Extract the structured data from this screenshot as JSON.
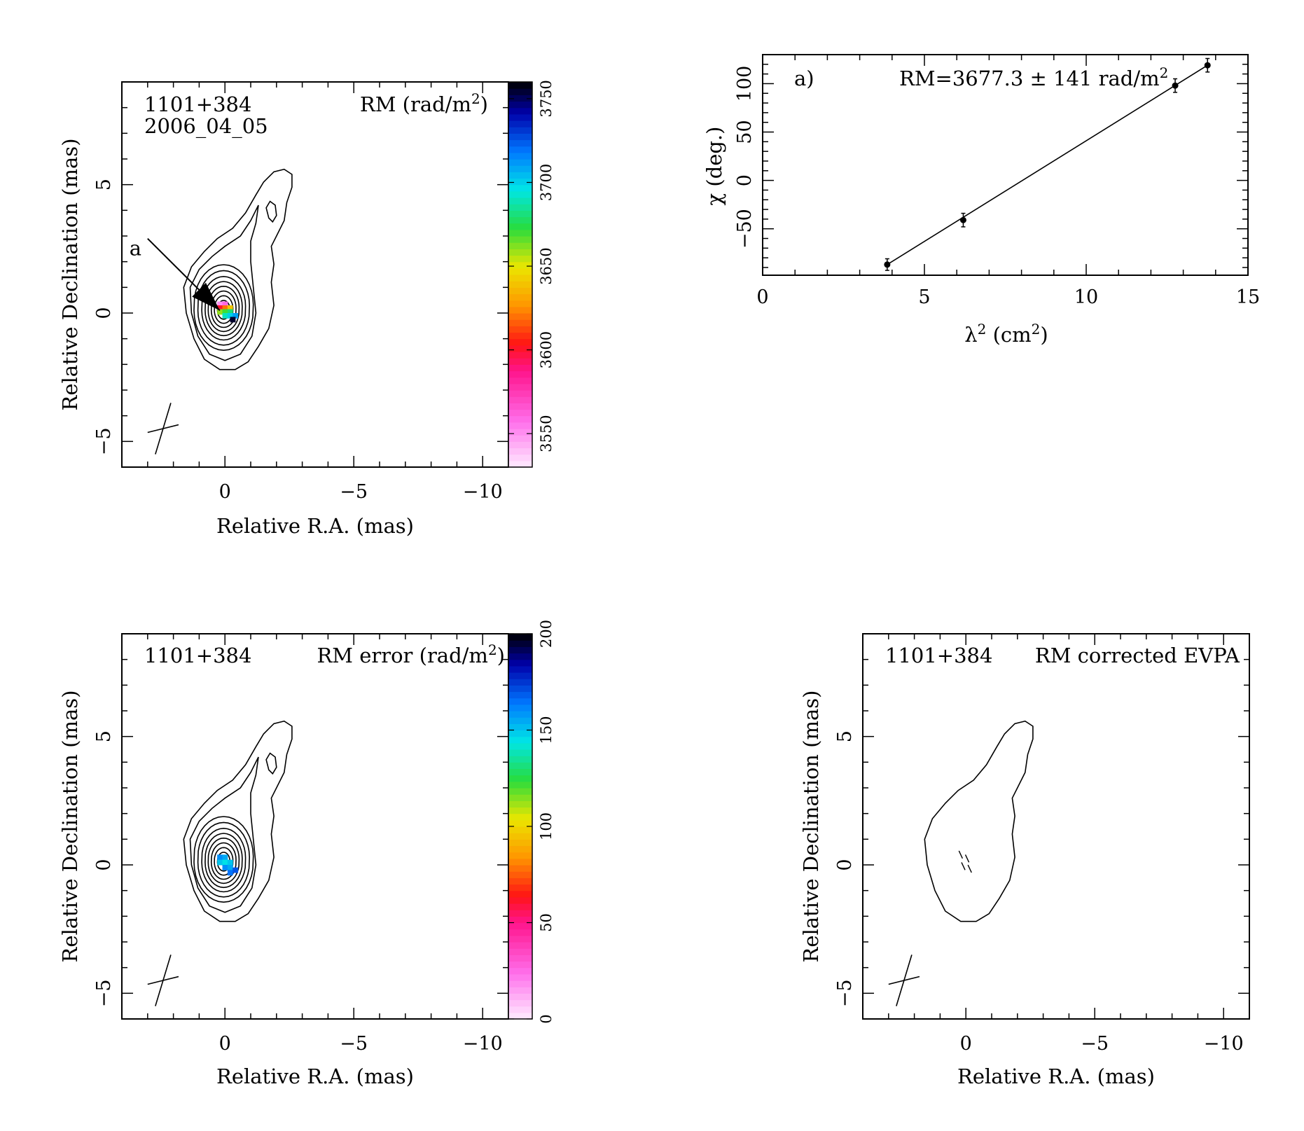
{
  "chart_data": [
    {
      "type": "heatmap",
      "id": "rm_map",
      "source": "1101+384",
      "epoch": "2006_04_05",
      "title": "RM (rad/m",
      "title_sup": "2",
      "title_end": ")",
      "xlabel": "Relative R.A. (mas)",
      "ylabel": "Relative Declination (mas)",
      "xlim": [
        4,
        -11
      ],
      "ylim": [
        -6,
        9
      ],
      "xticks": [
        {
          "v": 0,
          "label": "0"
        },
        {
          "v": -5,
          "label": "−5"
        },
        {
          "v": -10,
          "label": "−10"
        }
      ],
      "yticks": [
        {
          "v": -5,
          "label": "−5"
        },
        {
          "v": 0,
          "label": "0"
        },
        {
          "v": 5,
          "label": "5"
        }
      ],
      "colorbar": {
        "range": [
          3530,
          3760
        ],
        "ticks": [
          {
            "v": 3550,
            "label": "3550"
          },
          {
            "v": 3600,
            "label": "3600"
          },
          {
            "v": 3650,
            "label": "3650"
          },
          {
            "v": 3700,
            "label": "3700"
          },
          {
            "v": 3750,
            "label": "3750"
          }
        ]
      },
      "annotation": {
        "label": "a",
        "from": [
          3.0,
          2.9
        ],
        "to": [
          0.2,
          0.1
        ]
      },
      "rm_pixels": [
        {
          "x": 0.2,
          "y": 0.35,
          "v": 3550
        },
        {
          "x": 0.0,
          "y": 0.35,
          "v": 3560
        },
        {
          "x": 0.2,
          "y": 0.2,
          "v": 3600
        },
        {
          "x": 0.0,
          "y": 0.2,
          "v": 3620
        },
        {
          "x": -0.2,
          "y": 0.2,
          "v": 3640
        },
        {
          "x": 0.2,
          "y": 0.05,
          "v": 3660
        },
        {
          "x": 0.0,
          "y": 0.05,
          "v": 3670
        },
        {
          "x": -0.2,
          "y": 0.05,
          "v": 3680
        },
        {
          "x": 0.0,
          "y": -0.1,
          "v": 3690
        },
        {
          "x": -0.2,
          "y": -0.1,
          "v": 3700
        },
        {
          "x": -0.4,
          "y": -0.1,
          "v": 3710
        },
        {
          "x": -0.3,
          "y": -0.25,
          "v": 3755
        }
      ]
    },
    {
      "type": "scatter",
      "id": "rm_fit",
      "label": "a)",
      "fit_text": "RM=3677.3 ± 141 rad/m",
      "fit_text_sup": "2",
      "xlabel_main": "λ",
      "xlabel_sup": "2",
      "xlabel_unit": " (cm",
      "xlabel_unit_sup": "2",
      "xlabel_end": ")",
      "ylabel": "χ (deg.)",
      "xlim": [
        0,
        15
      ],
      "ylim": [
        -98,
        130
      ],
      "xticks": [
        {
          "v": 0,
          "label": "0"
        },
        {
          "v": 5,
          "label": "5"
        },
        {
          "v": 10,
          "label": "10"
        },
        {
          "v": 15,
          "label": "15"
        }
      ],
      "yticks": [
        {
          "v": -50,
          "label": "−50"
        },
        {
          "v": 0,
          "label": "0"
        },
        {
          "v": 50,
          "label": "50"
        },
        {
          "v": 100,
          "label": "100"
        }
      ],
      "points": [
        {
          "x": 3.85,
          "y": -87,
          "err": 6
        },
        {
          "x": 6.2,
          "y": -41,
          "err": 7
        },
        {
          "x": 12.75,
          "y": 98,
          "err": 7
        },
        {
          "x": 13.75,
          "y": 119,
          "err": 7
        }
      ],
      "fit_line": {
        "x": [
          3.85,
          13.75
        ],
        "y": [
          -87,
          119
        ]
      }
    },
    {
      "type": "heatmap",
      "id": "rm_error_map",
      "source": "1101+384",
      "title": "RM error (rad/m",
      "title_sup": "2",
      "title_end": ")",
      "xlabel": "Relative R.A. (mas)",
      "ylabel": "Relative Declination (mas)",
      "xlim": [
        4,
        -11
      ],
      "ylim": [
        -6,
        9
      ],
      "xticks": [
        {
          "v": 0,
          "label": "0"
        },
        {
          "v": -5,
          "label": "−5"
        },
        {
          "v": -10,
          "label": "−10"
        }
      ],
      "yticks": [
        {
          "v": -5,
          "label": "−5"
        },
        {
          "v": 0,
          "label": "0"
        },
        {
          "v": 5,
          "label": "5"
        }
      ],
      "colorbar": {
        "range": [
          0,
          200
        ],
        "ticks": [
          {
            "v": 0,
            "label": "0"
          },
          {
            "v": 50,
            "label": "50"
          },
          {
            "v": 100,
            "label": "100"
          },
          {
            "v": 150,
            "label": "150"
          },
          {
            "v": 200,
            "label": "200"
          }
        ]
      },
      "err_pixels": [
        {
          "x": 0.2,
          "y": 0.3,
          "v": 160
        },
        {
          "x": 0.0,
          "y": 0.3,
          "v": 155
        },
        {
          "x": 0.2,
          "y": 0.1,
          "v": 150
        },
        {
          "x": 0.0,
          "y": 0.1,
          "v": 145
        },
        {
          "x": -0.2,
          "y": 0.1,
          "v": 150
        },
        {
          "x": 0.0,
          "y": -0.1,
          "v": 160
        },
        {
          "x": -0.2,
          "y": -0.1,
          "v": 155
        },
        {
          "x": -0.2,
          "y": -0.3,
          "v": 165
        },
        {
          "x": -0.4,
          "y": -0.2,
          "v": 170
        }
      ]
    },
    {
      "type": "heatmap",
      "id": "evpa_map",
      "source": "1101+384",
      "title": "RM corrected EVPA",
      "xlabel": "Relative R.A. (mas)",
      "ylabel": "Relative Declination (mas)",
      "xlim": [
        4,
        -11
      ],
      "ylim": [
        -6,
        9
      ],
      "xticks": [
        {
          "v": 0,
          "label": "0"
        },
        {
          "v": -5,
          "label": "−5"
        },
        {
          "v": -10,
          "label": "−10"
        }
      ],
      "yticks": [
        {
          "v": -5,
          "label": "−5"
        },
        {
          "v": 0,
          "label": "0"
        },
        {
          "v": 5,
          "label": "5"
        }
      ],
      "evpa_vectors": [
        {
          "x": 0.2,
          "y": 0.4,
          "angle": 25
        },
        {
          "x": -0.05,
          "y": 0.25,
          "angle": 25
        },
        {
          "x": 0.1,
          "y": -0.05,
          "angle": 25
        },
        {
          "x": -0.15,
          "y": -0.15,
          "angle": 25
        }
      ]
    }
  ]
}
